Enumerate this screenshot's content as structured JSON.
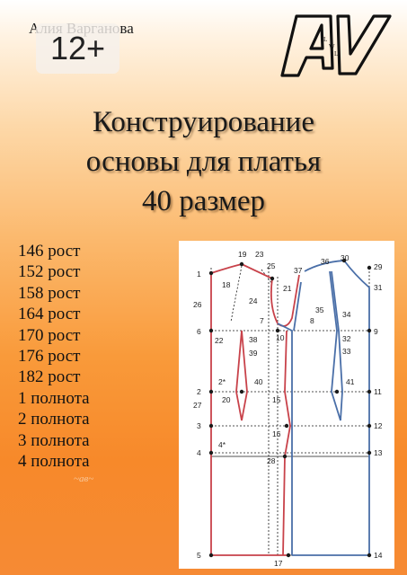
{
  "cover": {
    "author": "Алия Варганова",
    "age_rating": "12+",
    "title_lines": [
      "Конструирование",
      "основы для платья",
      "40 размер"
    ],
    "size_options": [
      "146 рост",
      "152 рост",
      "158 рост",
      "164 рост",
      "170 рост",
      "176 рост",
      "182 рост",
      "1 полнота",
      "2 полнота",
      "3 полнота",
      "4 полнота"
    ],
    "logo": {
      "letters": "AV",
      "inner_letters": [
        "L",
        "W",
        "L"
      ]
    },
    "pattern_labels": [
      "1",
      "19",
      "23",
      "25",
      "37",
      "36",
      "30",
      "29",
      "18",
      "21",
      "31",
      "26",
      "24",
      "35",
      "34",
      "7",
      "8",
      "6",
      "22",
      "38",
      "10",
      "9",
      "32",
      "39",
      "33",
      "2*",
      "40",
      "41",
      "2",
      "11",
      "20",
      "15",
      "27",
      "3",
      "12",
      "16",
      "4*",
      "4",
      "13",
      "28",
      "5",
      "14",
      "17"
    ],
    "colors": {
      "pattern_red": "#c8424a",
      "pattern_blue": "#4a6fa8",
      "guides": "#1a1a1a"
    }
  }
}
